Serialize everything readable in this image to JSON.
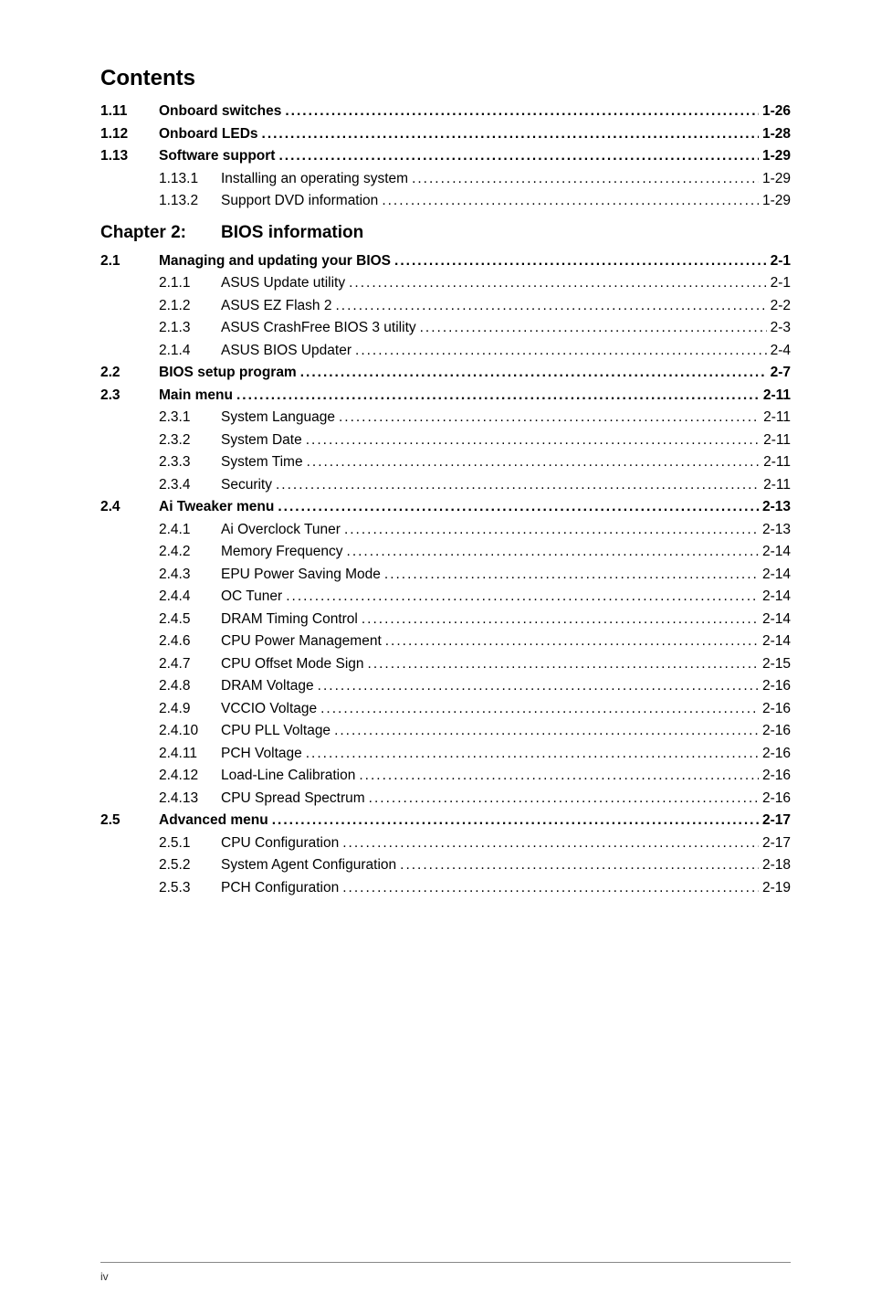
{
  "title": "Contents",
  "chapter": {
    "num": "Chapter 2:",
    "title": "BIOS information"
  },
  "footer_page": "iv",
  "rows": [
    {
      "type": "line",
      "bold": true,
      "indent": "a",
      "num": "1.11",
      "label": "Onboard switches",
      "page": "1-26"
    },
    {
      "type": "line",
      "bold": true,
      "indent": "a",
      "num": "1.12",
      "label": "Onboard LEDs",
      "page": "1-28"
    },
    {
      "type": "line",
      "bold": true,
      "indent": "a",
      "num": "1.13",
      "label": "Software support",
      "page": "1-29"
    },
    {
      "type": "line",
      "bold": false,
      "indent": "b2",
      "num": "1.13.1",
      "label": "Installing an operating system ",
      "page": " 1-29"
    },
    {
      "type": "line",
      "bold": false,
      "indent": "b2",
      "num": "1.13.2",
      "label": "Support DVD information ",
      "page": " 1-29"
    },
    {
      "type": "chapter"
    },
    {
      "type": "line",
      "bold": true,
      "indent": "a",
      "num": "2.1",
      "label": "Managing and updating your BIOS ",
      "page": " 2-1"
    },
    {
      "type": "line",
      "bold": false,
      "indent": "b2",
      "num": "2.1.1",
      "label": "ASUS Update utility ",
      "page": " 2-1"
    },
    {
      "type": "line",
      "bold": false,
      "indent": "b2",
      "num": "2.1.2",
      "label": "ASUS EZ Flash 2",
      "page": " 2-2"
    },
    {
      "type": "line",
      "bold": false,
      "indent": "b2",
      "num": "2.1.3",
      "label": "ASUS CrashFree BIOS 3 utility ",
      "page": " 2-3"
    },
    {
      "type": "line",
      "bold": false,
      "indent": "b2",
      "num": "2.1.4",
      "label": "ASUS BIOS Updater",
      "page": " 2-4"
    },
    {
      "type": "line",
      "bold": true,
      "indent": "a",
      "num": "2.2",
      "label": "BIOS setup program ",
      "page": " 2-7"
    },
    {
      "type": "line",
      "bold": true,
      "indent": "a",
      "num": "2.3",
      "label": "Main menu ",
      "page": " 2-11"
    },
    {
      "type": "line",
      "bold": false,
      "indent": "b2",
      "num": "2.3.1",
      "label": "System Language ",
      "page": "2-11"
    },
    {
      "type": "line",
      "bold": false,
      "indent": "b2",
      "num": "2.3.2",
      "label": "System Date ",
      "page": "2-11"
    },
    {
      "type": "line",
      "bold": false,
      "indent": "b2",
      "num": "2.3.3",
      "label": "System Time ",
      "page": "2-11"
    },
    {
      "type": "line",
      "bold": false,
      "indent": "b2",
      "num": "2.3.4",
      "label": "Security ",
      "page": "2-11"
    },
    {
      "type": "line",
      "bold": true,
      "indent": "a",
      "num": "2.4",
      "label": "Ai Tweaker menu",
      "page": " 2-13"
    },
    {
      "type": "line",
      "bold": false,
      "indent": "b2",
      "num": "2.4.1",
      "label": "Ai Overclock Tuner",
      "page": " 2-13"
    },
    {
      "type": "line",
      "bold": false,
      "indent": "b2",
      "num": "2.4.2",
      "label": "Memory Frequency ",
      "page": " 2-14"
    },
    {
      "type": "line",
      "bold": false,
      "indent": "b2",
      "num": "2.4.3",
      "label": "EPU Power Saving Mode ",
      "page": " 2-14"
    },
    {
      "type": "line",
      "bold": false,
      "indent": "b2",
      "num": "2.4.4",
      "label": "OC Tuner ",
      "page": " 2-14"
    },
    {
      "type": "line",
      "bold": false,
      "indent": "b2",
      "num": "2.4.5",
      "label": "DRAM Timing Control ",
      "page": " 2-14"
    },
    {
      "type": "line",
      "bold": false,
      "indent": "b2",
      "num": "2.4.6",
      "label": "CPU Power Management ",
      "page": " 2-14"
    },
    {
      "type": "line",
      "bold": false,
      "indent": "b2",
      "num": "2.4.7",
      "label": "CPU Offset Mode Sign",
      "page": " 2-15"
    },
    {
      "type": "line",
      "bold": false,
      "indent": "b2",
      "num": "2.4.8",
      "label": "DRAM Voltage ",
      "page": " 2-16"
    },
    {
      "type": "line",
      "bold": false,
      "indent": "b2",
      "num": "2.4.9",
      "label": "VCCIO Voltage",
      "page": " 2-16"
    },
    {
      "type": "line",
      "bold": false,
      "indent": "b2",
      "num": "2.4.10",
      "label": "CPU PLL Voltage ",
      "page": " 2-16"
    },
    {
      "type": "line",
      "bold": false,
      "indent": "b2",
      "num": "2.4.11",
      "label": "PCH Voltage ",
      "page": " 2-16"
    },
    {
      "type": "line",
      "bold": false,
      "indent": "b2",
      "num": "2.4.12",
      "label": "Load-Line Calibration",
      "page": " 2-16"
    },
    {
      "type": "line",
      "bold": false,
      "indent": "b2",
      "num": "2.4.13",
      "label": "CPU Spread Spectrum ",
      "page": " 2-16"
    },
    {
      "type": "line",
      "bold": true,
      "indent": "a",
      "num": "2.5",
      "label": "Advanced menu ",
      "page": " 2-17"
    },
    {
      "type": "line",
      "bold": false,
      "indent": "b2",
      "num": "2.5.1",
      "label": "CPU Configuration ",
      "page": " 2-17"
    },
    {
      "type": "line",
      "bold": false,
      "indent": "b2",
      "num": "2.5.2",
      "label": "System Agent Configuration ",
      "page": " 2-18"
    },
    {
      "type": "line",
      "bold": false,
      "indent": "b2",
      "num": "2.5.3",
      "label": "PCH Configuration ",
      "page": " 2-19"
    }
  ],
  "dots_fill": "...................................................................................................................................."
}
